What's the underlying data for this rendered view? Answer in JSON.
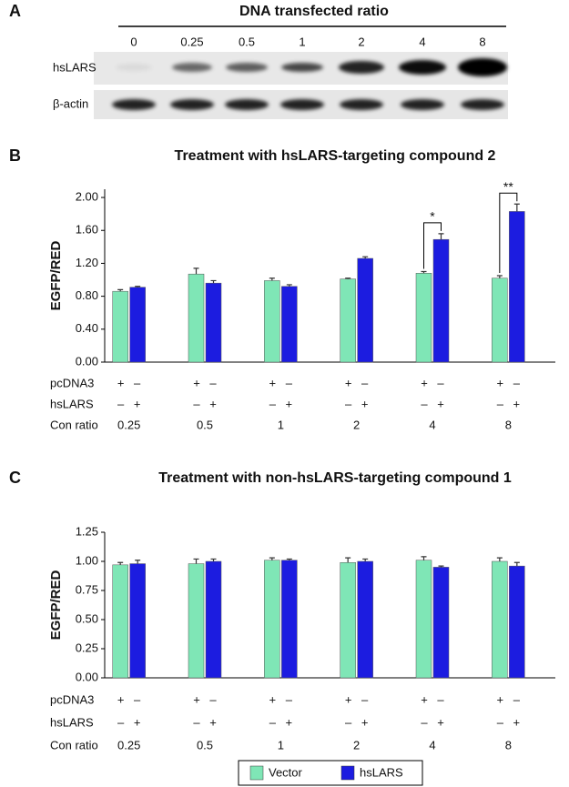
{
  "blot": {
    "panel": "A",
    "title": "DNA transfected ratio",
    "lanes": [
      "0",
      "0.25",
      "0.5",
      "1",
      "2",
      "4",
      "8"
    ],
    "rows": [
      "hsLARS",
      "β-actin"
    ]
  },
  "chart_data": [
    {
      "type": "bar",
      "panel": "B",
      "title": "Treatment with hsLARS-targeting compound 2",
      "y_label": "EGFP/RED",
      "categories": [
        "0.25",
        "0.5",
        "1",
        "2",
        "4",
        "8"
      ],
      "categories_label": "Con ratio",
      "conditions": [
        {
          "label": "pcDNA3",
          "signs": [
            "+",
            "–"
          ]
        },
        {
          "label": "hsLARS",
          "signs": [
            "–",
            "+"
          ]
        }
      ],
      "series": [
        {
          "color": "#7fe6b6",
          "values": [
            0.86,
            1.07,
            0.99,
            1.01,
            1.08,
            1.02
          ],
          "errors": [
            0.02,
            0.07,
            0.03,
            0.01,
            0.02,
            0.03
          ]
        },
        {
          "color": "#1c1ce0",
          "values": [
            0.91,
            0.96,
            0.92,
            1.26,
            1.49,
            1.83
          ],
          "errors": [
            0.01,
            0.03,
            0.02,
            0.02,
            0.07,
            0.09
          ]
        }
      ],
      "annotations": [
        {
          "text": "*",
          "category": "4"
        },
        {
          "text": "**",
          "category": "8"
        }
      ],
      "ylim": [
        0,
        2.1
      ],
      "yticks": [
        {
          "value": 0,
          "label": "0.00"
        },
        {
          "value": 0.4,
          "label": "0.40"
        },
        {
          "value": 0.8,
          "label": "0.80"
        },
        {
          "value": 1.2,
          "label": "1.20"
        },
        {
          "value": 1.6,
          "label": "1.60"
        },
        {
          "value": 2,
          "label": "2.00"
        }
      ]
    },
    {
      "type": "bar",
      "panel": "C",
      "title": "Treatment with non-hsLARS-targeting compound 1",
      "y_label": "EGFP/RED",
      "categories": [
        "0.25",
        "0.5",
        "1",
        "2",
        "4",
        "8"
      ],
      "categories_label": "Con ratio",
      "conditions": [
        {
          "label": "pcDNA3",
          "signs": [
            "+",
            "–"
          ]
        },
        {
          "label": "hsLARS",
          "signs": [
            "–",
            "+"
          ]
        }
      ],
      "series": [
        {
          "name": "Vector",
          "color": "#7fe6b6",
          "values": [
            0.97,
            0.98,
            1.01,
            0.99,
            1.01,
            1.0
          ],
          "errors": [
            0.02,
            0.04,
            0.02,
            0.04,
            0.03,
            0.03
          ]
        },
        {
          "name": "hsLARS",
          "color": "#1c1ce0",
          "values": [
            0.98,
            1.0,
            1.01,
            1.0,
            0.95,
            0.96
          ],
          "errors": [
            0.03,
            0.02,
            0.01,
            0.02,
            0.01,
            0.03
          ]
        }
      ],
      "legend": "bottom",
      "ylim": [
        0,
        1.25
      ],
      "yticks": [
        {
          "value": 0,
          "label": "0.00"
        },
        {
          "value": 0.25,
          "label": "0.25"
        },
        {
          "value": 0.5,
          "label": "0.50"
        },
        {
          "value": 0.75,
          "label": "0.75"
        },
        {
          "value": 1,
          "label": "1.00"
        },
        {
          "value": 1.25,
          "label": "1.25"
        }
      ]
    }
  ]
}
